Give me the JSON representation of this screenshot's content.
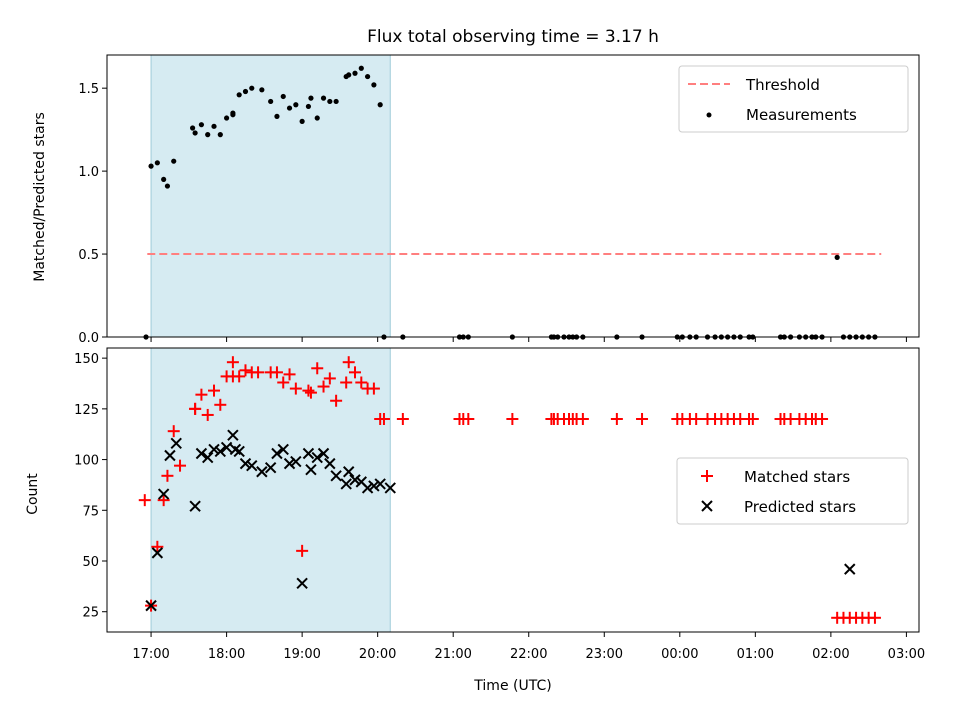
{
  "title": "Flux total observing time = 3.17 h",
  "colors": {
    "threshold": "#ff7f7f",
    "measurement": "#000000",
    "matched": "#ff0000",
    "predicted": "#000000",
    "shade": "#add8e6"
  },
  "chart_data": [
    {
      "type": "scatter",
      "panel": "top",
      "title": "Flux total observing time = 3.17 h",
      "xlabel": "",
      "ylabel": "Matched/Predicted stars",
      "ylim": [
        0,
        1.7
      ],
      "yticks": [
        "0.0",
        "0.5",
        "1.0",
        "1.5"
      ],
      "shaded_span": [
        "17:00",
        "20:10"
      ],
      "legend": {
        "placement": "top-right",
        "entries": [
          "Threshold",
          "Measurements"
        ]
      },
      "threshold": {
        "name": "Threshold",
        "y": 0.5,
        "x_range": [
          "16:57",
          "26:40"
        ]
      },
      "series": [
        {
          "name": "Measurements",
          "x": [
            "16:56",
            "17:00",
            "17:05",
            "17:10",
            "17:13",
            "17:18",
            "17:33",
            "17:35",
            "17:40",
            "17:45",
            "17:50",
            "17:55",
            "18:00",
            "18:05",
            "18:05",
            "18:10",
            "18:15",
            "18:20",
            "18:28",
            "18:35",
            "18:40",
            "18:45",
            "18:50",
            "18:55",
            "19:00",
            "19:05",
            "19:07",
            "19:12",
            "19:17",
            "19:22",
            "19:27",
            "19:35",
            "19:37",
            "19:42",
            "19:47",
            "19:52",
            "19:57",
            "20:02",
            "20:05",
            "20:20",
            "21:05",
            "21:08",
            "21:12",
            "21:47",
            "22:18",
            "22:20",
            "22:23",
            "22:28",
            "22:32",
            "22:35",
            "22:38",
            "22:43",
            "23:10",
            "23:30",
            "23:58",
            "00:02",
            "00:08",
            "00:13",
            "00:22",
            "00:28",
            "00:33",
            "00:38",
            "00:43",
            "00:48",
            "00:55",
            "00:58",
            "01:20",
            "01:23",
            "01:28",
            "01:35",
            "01:40",
            "01:45",
            "01:48",
            "01:53",
            "02:05",
            "02:10",
            "02:15",
            "02:20",
            "02:25",
            "02:30",
            "02:35"
          ],
          "y": [
            0.0,
            1.03,
            1.05,
            0.95,
            0.91,
            1.06,
            1.26,
            1.23,
            1.28,
            1.22,
            1.27,
            1.22,
            1.32,
            1.34,
            1.35,
            1.46,
            1.48,
            1.5,
            1.49,
            1.42,
            1.33,
            1.45,
            1.38,
            1.4,
            1.3,
            1.39,
            1.44,
            1.32,
            1.44,
            1.42,
            1.42,
            1.57,
            1.58,
            1.59,
            1.62,
            1.57,
            1.52,
            1.4,
            0.0,
            0.0,
            0.0,
            0.0,
            0.0,
            0.0,
            0.0,
            0.0,
            0.0,
            0.0,
            0.0,
            0.0,
            0.0,
            0.0,
            0.0,
            0.0,
            0.0,
            0.0,
            0.0,
            0.0,
            0.0,
            0.0,
            0.0,
            0.0,
            0.0,
            0.0,
            0.0,
            0.0,
            0.0,
            0.0,
            0.0,
            0.0,
            0.0,
            0.0,
            0.0,
            0.0,
            0.48,
            0.0,
            0.0,
            0.0,
            0.0,
            0.0,
            0.0
          ]
        }
      ]
    },
    {
      "type": "scatter",
      "panel": "bottom",
      "xlabel": "Time (UTC)",
      "ylabel": "Count",
      "ylim": [
        15,
        155
      ],
      "yticks": [
        "25",
        "50",
        "75",
        "100",
        "125",
        "150"
      ],
      "xticks": [
        "17:00",
        "18:00",
        "19:00",
        "20:00",
        "21:00",
        "22:00",
        "23:00",
        "00:00",
        "01:00",
        "02:00",
        "03:00"
      ],
      "xlim": [
        "16:25",
        "03:10"
      ],
      "shaded_span": [
        "17:00",
        "20:10"
      ],
      "legend": {
        "placement": "center-right",
        "entries": [
          "Matched stars",
          "Predicted stars"
        ]
      },
      "series": [
        {
          "name": "Matched stars",
          "x": [
            "16:55",
            "17:00",
            "17:05",
            "17:10",
            "17:13",
            "17:18",
            "17:23",
            "17:35",
            "17:35",
            "17:40",
            "17:45",
            "17:50",
            "17:55",
            "18:00",
            "18:05",
            "18:05",
            "18:10",
            "18:15",
            "18:20",
            "18:25",
            "18:35",
            "18:40",
            "18:45",
            "18:50",
            "18:55",
            "19:00",
            "19:05",
            "19:07",
            "19:12",
            "19:17",
            "19:22",
            "19:27",
            "19:35",
            "19:37",
            "19:42",
            "19:47",
            "19:52",
            "19:57",
            "20:02",
            "20:05",
            "20:20",
            "21:05",
            "21:08",
            "21:12",
            "21:47",
            "22:18",
            "22:20",
            "22:23",
            "22:28",
            "22:32",
            "22:35",
            "22:38",
            "22:43",
            "23:10",
            "23:30",
            "23:58",
            "00:02",
            "00:08",
            "00:13",
            "00:22",
            "00:28",
            "00:33",
            "00:38",
            "00:43",
            "00:48",
            "00:55",
            "00:58",
            "01:20",
            "01:23",
            "01:28",
            "01:35",
            "01:40",
            "01:45",
            "01:48",
            "01:53",
            "02:05",
            "02:10",
            "02:15",
            "02:20",
            "02:25",
            "02:30",
            "02:35"
          ],
          "y": [
            80,
            28,
            57,
            80,
            92,
            114,
            97,
            125,
            125,
            132,
            122,
            134,
            127,
            141,
            148,
            141,
            141,
            144,
            143,
            143,
            143,
            143,
            138,
            142,
            135,
            55,
            134,
            133,
            145,
            136,
            140,
            129,
            138,
            148,
            143,
            138,
            135,
            135,
            120,
            120,
            120,
            120,
            120,
            120,
            120,
            120,
            120,
            120,
            120,
            120,
            120,
            120,
            120,
            120,
            120,
            120,
            120,
            120,
            120,
            120,
            120,
            120,
            120,
            120,
            120,
            120,
            120,
            120,
            120,
            120,
            120,
            120,
            120,
            120,
            120,
            22,
            22,
            22,
            22,
            22,
            22,
            22
          ]
        },
        {
          "name": "Predicted stars",
          "x": [
            "17:00",
            "17:05",
            "17:10",
            "17:15",
            "17:20",
            "17:35",
            "17:40",
            "17:45",
            "17:50",
            "17:55",
            "18:00",
            "18:05",
            "18:07",
            "18:10",
            "18:15",
            "18:20",
            "18:28",
            "18:35",
            "18:40",
            "18:45",
            "18:50",
            "18:55",
            "19:00",
            "19:05",
            "19:07",
            "19:12",
            "19:17",
            "19:22",
            "19:27",
            "19:35",
            "19:37",
            "19:42",
            "19:47",
            "19:52",
            "19:57",
            "20:02",
            "20:10",
            "02:15"
          ],
          "y": [
            28,
            54,
            83,
            102,
            108,
            77,
            103,
            101,
            105,
            104,
            106,
            112,
            105,
            104,
            98,
            97,
            94,
            96,
            103,
            105,
            98,
            99,
            39,
            103,
            95,
            101,
            103,
            98,
            92,
            88,
            94,
            90,
            89,
            86,
            87,
            88,
            86,
            46
          ]
        }
      ]
    }
  ]
}
